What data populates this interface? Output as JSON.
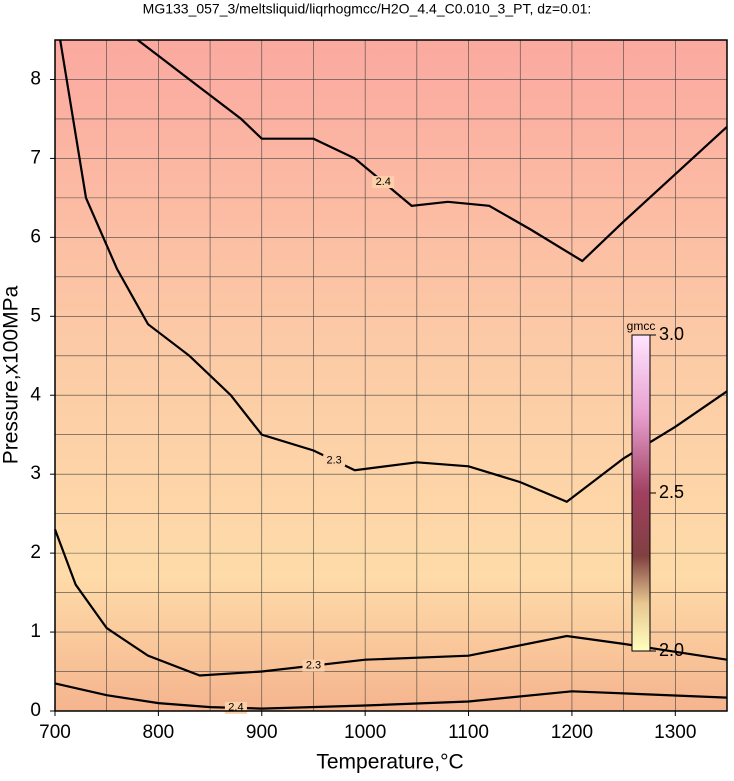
{
  "chart_data": {
    "type": "contour",
    "title": "MG133_057_3/meltsliquid/liqrhogmcc/H2O_4.4_C0.010_3_PT, dz=0.01:",
    "xlabel": "Temperature,°C",
    "ylabel": "Pressure,x100MPa",
    "xlim": [
      700,
      1350
    ],
    "ylim": [
      0,
      8.5
    ],
    "xticks": [
      700,
      800,
      900,
      1000,
      1100,
      1200,
      1300
    ],
    "xminorticks": [
      750,
      850,
      950,
      1050,
      1150,
      1250,
      1350
    ],
    "yticks": [
      0,
      1,
      2,
      3,
      4,
      5,
      6,
      7,
      8
    ],
    "yminorticks": [
      0.5,
      1.5,
      2.5,
      3.5,
      4.5,
      5.5,
      6.5,
      7.5
    ],
    "grid": true,
    "contours": [
      {
        "level": 2.4,
        "x": [
          780,
          800,
          830,
          880,
          900,
          950,
          990,
          1045,
          1080,
          1120,
          1160,
          1210,
          1250,
          1300,
          1350
        ],
        "y": [
          8.5,
          8.3,
          8.0,
          7.5,
          7.25,
          7.25,
          7.0,
          6.4,
          6.45,
          6.4,
          6.1,
          5.7,
          6.2,
          6.8,
          7.4
        ]
      },
      {
        "level": 2.3,
        "x": [
          705,
          730,
          760,
          790,
          830,
          870,
          900,
          950,
          990,
          1050,
          1100,
          1150,
          1195,
          1250,
          1300,
          1350
        ],
        "y": [
          8.5,
          6.5,
          5.6,
          4.9,
          4.5,
          4.0,
          3.5,
          3.3,
          3.05,
          3.15,
          3.1,
          2.9,
          2.65,
          3.2,
          3.6,
          4.05
        ]
      },
      {
        "level": 2.3,
        "x": [
          700,
          720,
          750,
          790,
          840,
          900,
          1000,
          1100,
          1195,
          1250,
          1300,
          1350
        ],
        "y": [
          2.3,
          1.6,
          1.05,
          0.7,
          0.45,
          0.5,
          0.65,
          0.7,
          0.95,
          0.85,
          0.75,
          0.65
        ]
      },
      {
        "level": 2.4,
        "x": [
          700,
          750,
          800,
          850,
          900,
          1000,
          1100,
          1200,
          1350
        ],
        "y": [
          0.35,
          0.2,
          0.1,
          0.05,
          0.03,
          0.07,
          0.12,
          0.25,
          0.17
        ]
      }
    ],
    "colorbar": {
      "label": "gmcc",
      "lim": [
        2.0,
        3.0
      ],
      "ticks": [
        {
          "value": 2.0,
          "label": "2.0"
        },
        2.5,
        {
          "value": 3.0,
          "label": "3.0"
        }
      ]
    }
  }
}
